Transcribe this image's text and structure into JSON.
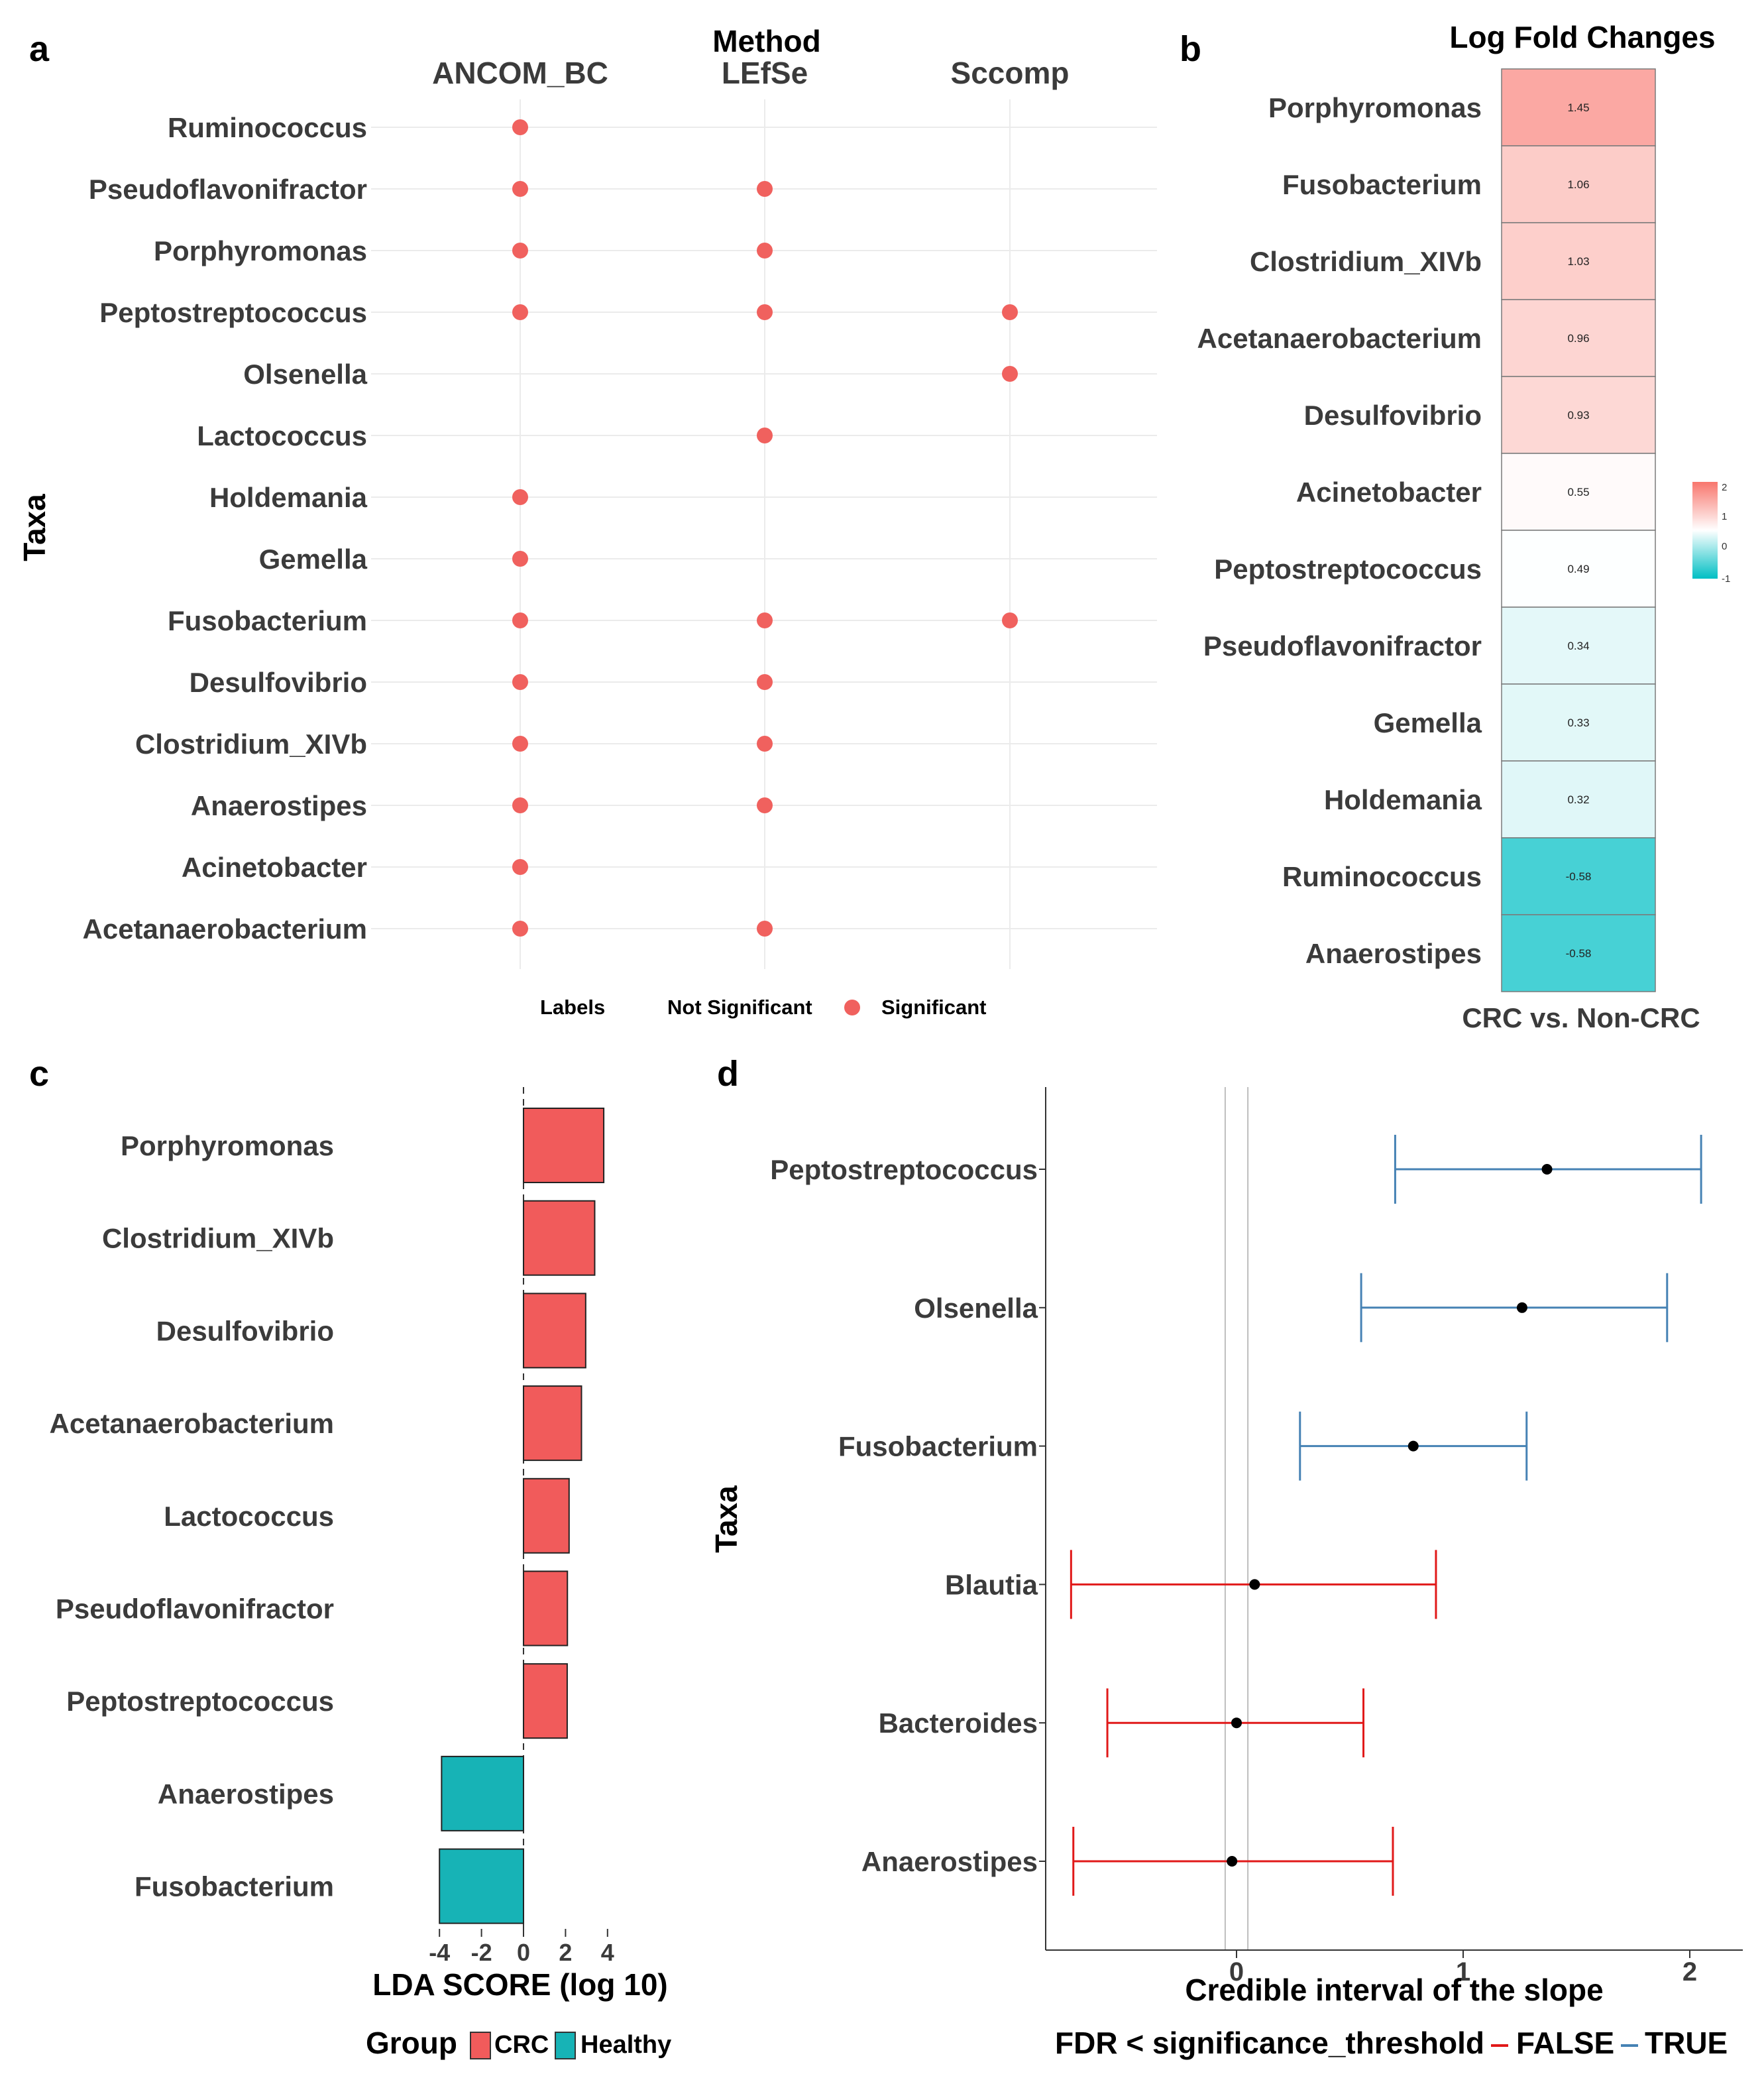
{
  "colors": {
    "significant": "#F0615E",
    "crc": "#F15B5B",
    "healthy": "#17B3B6",
    "ci_true": "#4682B4",
    "ci_false": "#E11919",
    "heat_high": "#F8766D",
    "heat_mid": "#FFFFFF",
    "heat_low": "#00BFC4",
    "grid": "#EBEBEB"
  },
  "chart_data": [
    {
      "panel": "a",
      "type": "scatter",
      "title": "Method",
      "ylabel": "Taxa",
      "methods": [
        "ANCOM_BC",
        "LEfSe",
        "Sccomp"
      ],
      "taxa": [
        "Ruminococcus",
        "Pseudoflavonifractor",
        "Porphyromonas",
        "Peptostreptococcus",
        "Olsenella",
        "Lactococcus",
        "Holdemania",
        "Gemella",
        "Fusobacterium",
        "Desulfovibrio",
        "Clostridium_XIVb",
        "Anaerostipes",
        "Acinetobacter",
        "Acetanaerobacterium"
      ],
      "significant": {
        "ANCOM_BC": [
          "Ruminococcus",
          "Pseudoflavonifractor",
          "Porphyromonas",
          "Peptostreptococcus",
          "Holdemania",
          "Gemella",
          "Fusobacterium",
          "Desulfovibrio",
          "Clostridium_XIVb",
          "Anaerostipes",
          "Acinetobacter",
          "Acetanaerobacterium"
        ],
        "LEfSe": [
          "Pseudoflavonifractor",
          "Porphyromonas",
          "Peptostreptococcus",
          "Lactococcus",
          "Fusobacterium",
          "Desulfovibrio",
          "Clostridium_XIVb",
          "Anaerostipes",
          "Acetanaerobacterium"
        ],
        "Sccomp": [
          "Peptostreptococcus",
          "Olsenella",
          "Fusobacterium"
        ]
      },
      "legend": {
        "title": "Labels",
        "items": [
          "Not Significant",
          "Significant"
        ]
      }
    },
    {
      "panel": "b",
      "type": "heatmap",
      "title": "Log Fold Changes",
      "xlabel": "CRC vs. Non-CRC",
      "rows": [
        "Porphyromonas",
        "Fusobacterium",
        "Clostridium_XIVb",
        "Acetanaerobacterium",
        "Desulfovibrio",
        "Acinetobacter",
        "Peptostreptococcus",
        "Pseudoflavonifractor",
        "Gemella",
        "Holdemania",
        "Ruminococcus",
        "Anaerostipes"
      ],
      "values": [
        1.45,
        1.06,
        1.03,
        0.96,
        0.93,
        0.55,
        0.49,
        0.34,
        0.33,
        0.32,
        -0.58,
        -0.58
      ],
      "value_labels": [
        "1.45",
        "1.06",
        "1.03",
        "0.96",
        "0.93",
        "0.55",
        "0.49",
        "0.34",
        "0.33",
        "0.32",
        "-0.58",
        "-0.58"
      ],
      "scale": {
        "min": -1,
        "mid": 0.5,
        "max": 2,
        "ticks": [
          "2",
          "1",
          "0",
          "-1"
        ]
      }
    },
    {
      "panel": "c",
      "type": "bar",
      "xlabel": "LDA SCORE (log 10)",
      "categories": [
        "Porphyromonas",
        "Clostridium_XIVb",
        "Desulfovibrio",
        "Acetanaerobacterium",
        "Lactococcus",
        "Pseudoflavonifractor",
        "Peptostreptococcus",
        "Anaerostipes",
        "Fusobacterium"
      ],
      "values": [
        3.82,
        3.39,
        2.96,
        2.76,
        2.17,
        2.09,
        2.08,
        -3.9,
        -4.0
      ],
      "groups": [
        "CRC",
        "CRC",
        "CRC",
        "CRC",
        "CRC",
        "CRC",
        "CRC",
        "Healthy",
        "Healthy"
      ],
      "xlim": [
        -4.1,
        4
      ],
      "xticks": [
        "-4",
        "-2",
        "0",
        "2",
        "4"
      ],
      "legend": {
        "title": "Group",
        "items": [
          "CRC",
          "Healthy"
        ]
      }
    },
    {
      "panel": "d",
      "type": "scatter",
      "xlabel": "Credible interval of the slope",
      "ylabel": "Taxa",
      "categories": [
        "Peptostreptococcus",
        "Olsenella",
        "Fusobacterium",
        "Blautia",
        "Bacteroides",
        "Anaerostipes"
      ],
      "estimate": [
        1.37,
        1.26,
        0.78,
        0.08,
        0.0,
        -0.02
      ],
      "lower": [
        0.7,
        0.55,
        0.28,
        -0.73,
        -0.57,
        -0.72
      ],
      "upper": [
        2.05,
        1.9,
        1.28,
        0.88,
        0.56,
        0.69
      ],
      "fdr_significant": [
        true,
        true,
        true,
        false,
        false,
        false
      ],
      "reference_lines": [
        -0.05,
        0.05
      ],
      "xlim": [
        -0.86,
        2.2
      ],
      "xticks": [
        "0",
        "1",
        "2"
      ],
      "legend": {
        "title": "FDR < significance_threshold",
        "items": [
          "FALSE",
          "TRUE"
        ]
      }
    }
  ],
  "panel_labels": [
    "a",
    "b",
    "c",
    "d"
  ]
}
